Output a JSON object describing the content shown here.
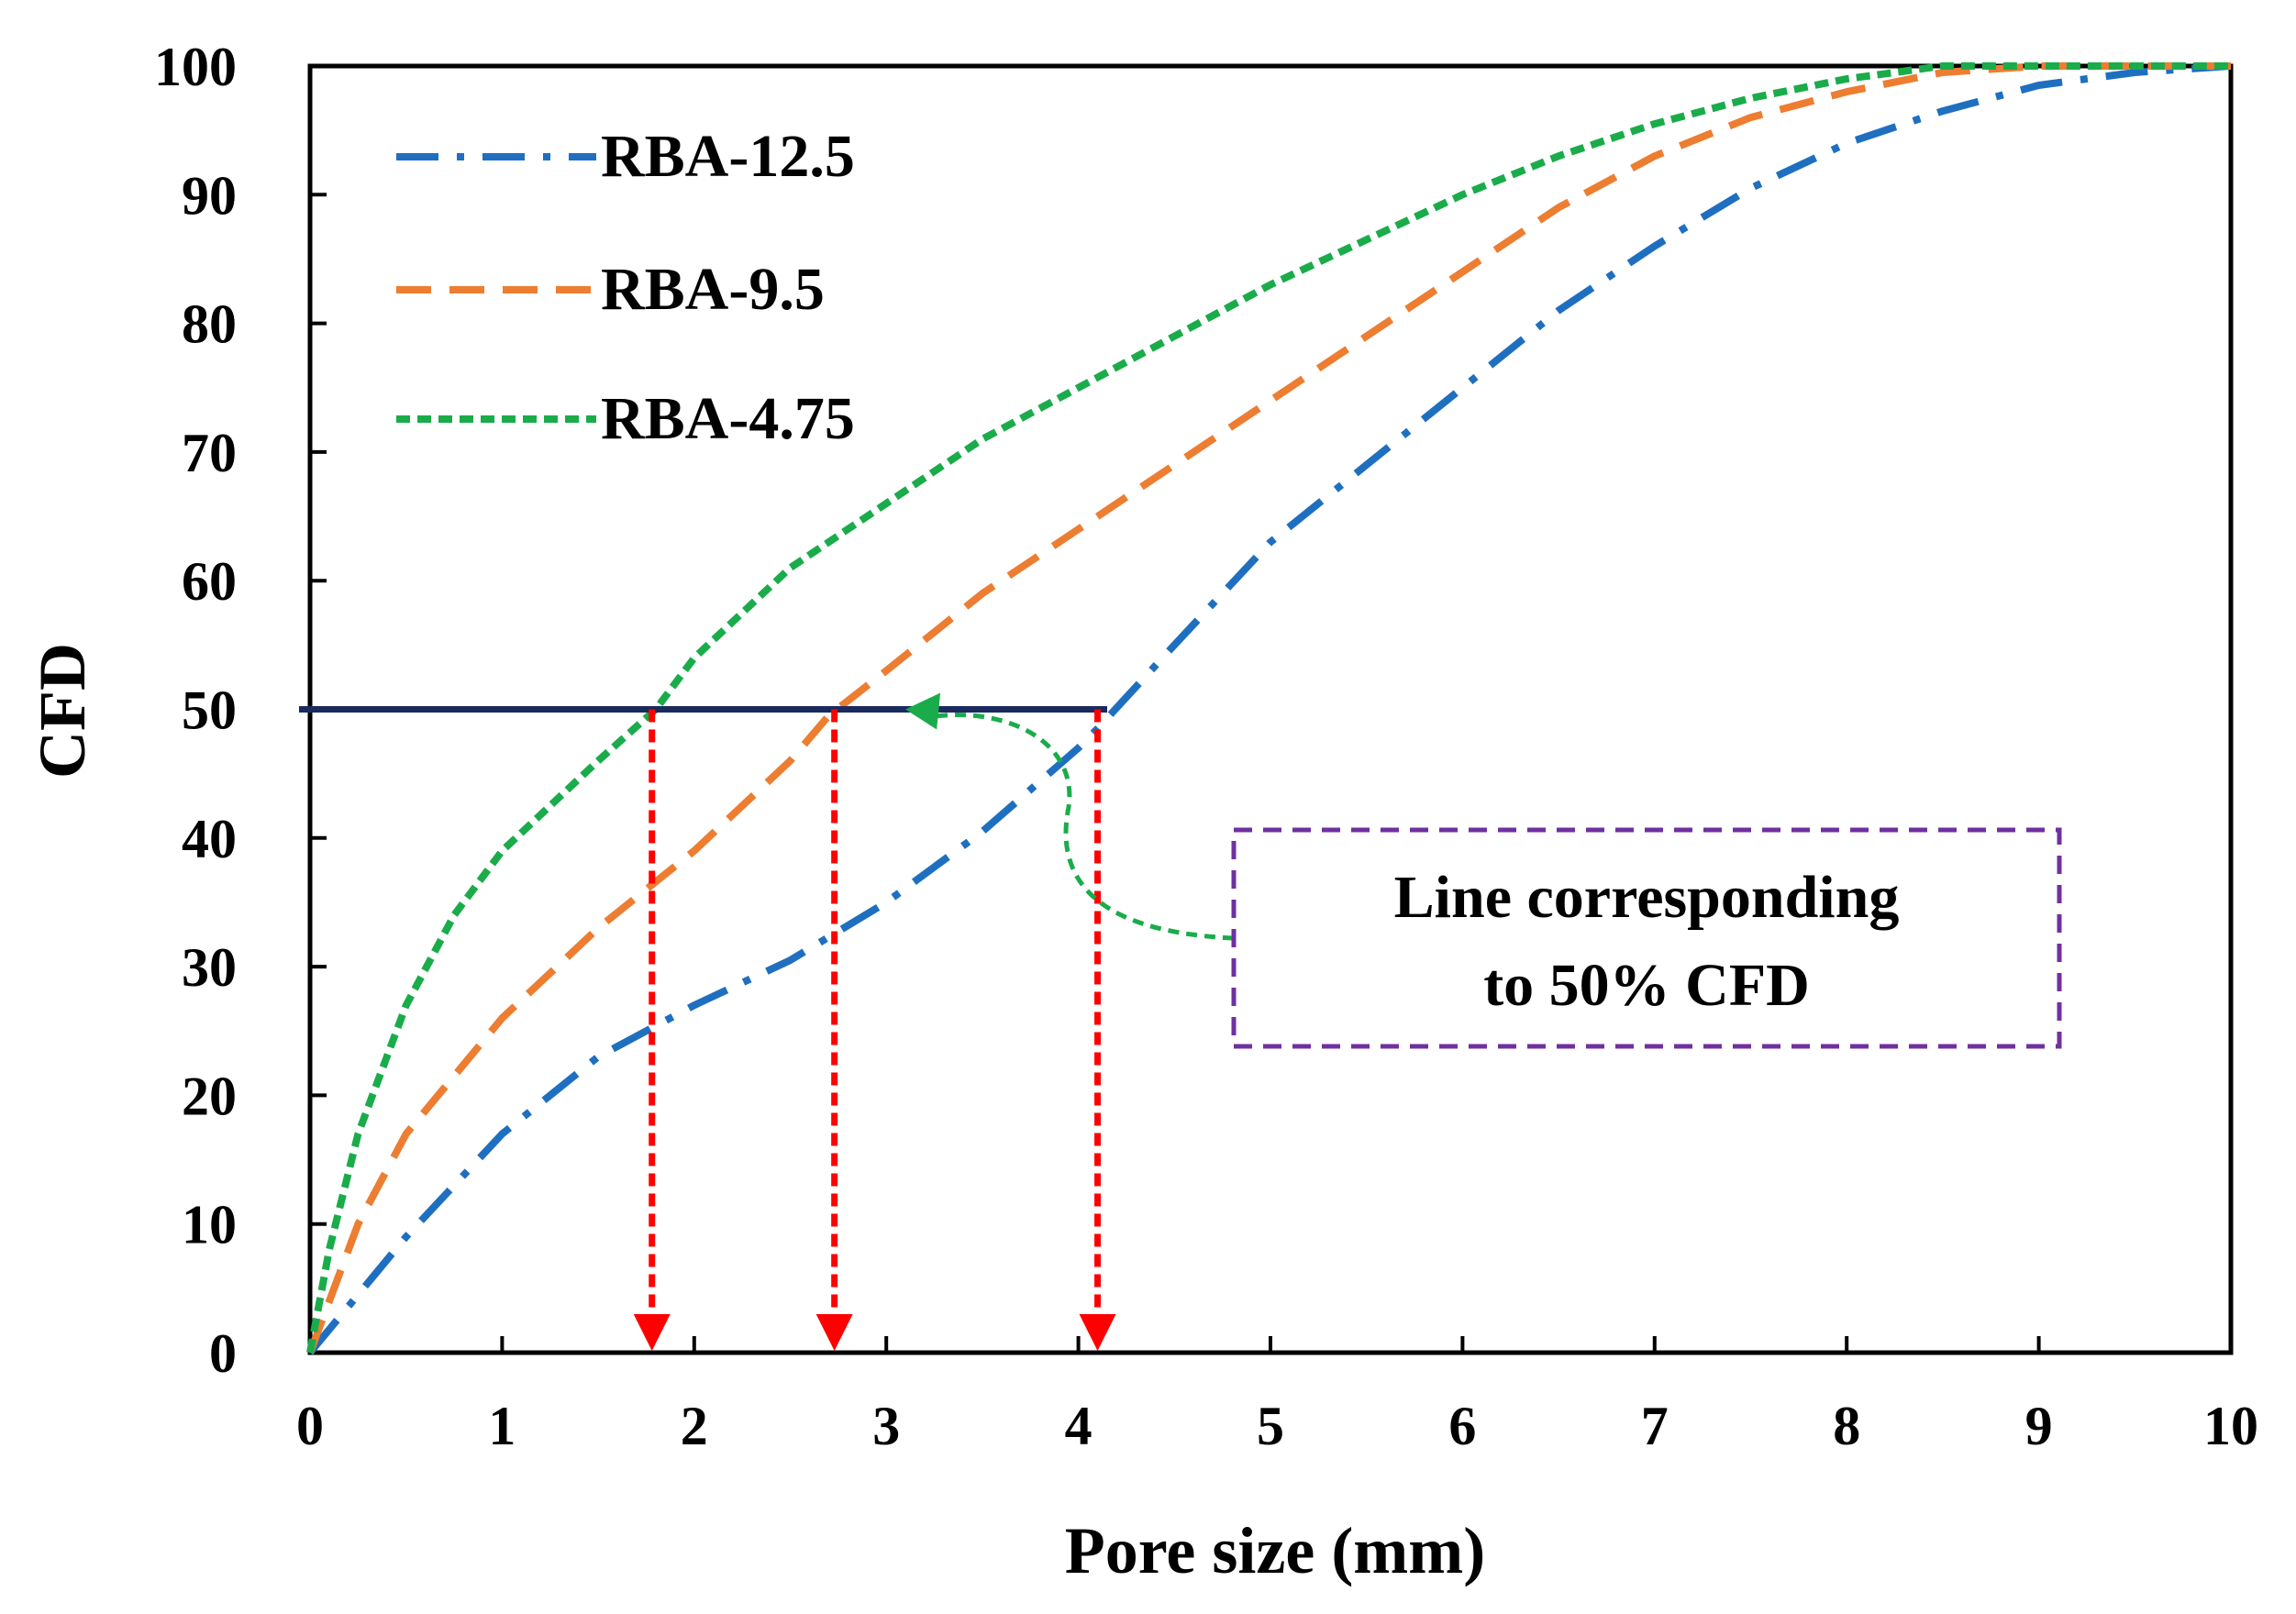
{
  "chart_data": {
    "type": "line",
    "title": "",
    "xlabel": "Pore size (mm)",
    "ylabel": "CFD",
    "xlim": [
      0,
      10
    ],
    "ylim": [
      0,
      100
    ],
    "xticks": [
      "0",
      "1",
      "2",
      "3",
      "4",
      "5",
      "6",
      "7",
      "8",
      "9",
      "10"
    ],
    "yticks": [
      "0",
      "10",
      "20",
      "30",
      "40",
      "50",
      "60",
      "70",
      "80",
      "90",
      "100"
    ],
    "grid": false,
    "legend_position": "top-left",
    "series": [
      {
        "name": "RBA-12.5",
        "color": "#1f6fc0",
        "style": "dashdot",
        "x": [
          0,
          0.5,
          1,
          1.5,
          2,
          2.5,
          3,
          3.5,
          4,
          4.1,
          4.5,
          5,
          5.5,
          6,
          6.5,
          7,
          7.5,
          8,
          8.5,
          9,
          9.5,
          10
        ],
        "y": [
          0,
          9,
          17,
          23,
          27,
          30.5,
          35,
          40.5,
          47,
          48.5,
          55,
          63,
          69,
          75,
          81,
          86,
          90.5,
          94,
          96.5,
          98.5,
          99.5,
          100
        ]
      },
      {
        "name": "RBA-9.5",
        "color": "#ed7d31",
        "style": "dashed",
        "x": [
          0,
          0.25,
          0.5,
          1,
          1.5,
          2,
          2.5,
          2.7,
          3,
          3.5,
          4,
          4.5,
          5,
          5.5,
          6,
          6.5,
          7,
          7.5,
          8,
          8.5,
          9,
          9.5,
          10
        ],
        "y": [
          0,
          10,
          17,
          26,
          33,
          39,
          46,
          49.5,
          53,
          59,
          64,
          69,
          74,
          79,
          84,
          89,
          93,
          96,
          98,
          99.5,
          100,
          100,
          100
        ]
      },
      {
        "name": "RBA-4.75",
        "color": "#1aac4a",
        "style": "dotted",
        "x": [
          0,
          0.1,
          0.25,
          0.5,
          0.75,
          1,
          1.5,
          1.8,
          2,
          2.5,
          3,
          3.5,
          4,
          4.5,
          5,
          5.5,
          6,
          6.5,
          7,
          7.5,
          8,
          8.5,
          9,
          9.5,
          10
        ],
        "y": [
          0,
          8,
          17,
          27,
          34,
          39,
          46,
          50,
          54,
          61,
          66,
          71,
          75,
          79,
          83,
          86.5,
          90,
          93,
          95.5,
          97.5,
          99,
          100,
          100,
          100,
          100
        ]
      }
    ],
    "reference_line": {
      "y": 50,
      "x_start": 0,
      "x_end": 4.15,
      "color": "#1a2a5e"
    },
    "drop_lines": [
      {
        "x": 1.78,
        "color": "#ff0000"
      },
      {
        "x": 2.73,
        "color": "#ff0000"
      },
      {
        "x": 4.1,
        "color": "#ff0000"
      }
    ],
    "annotation": {
      "lines": [
        "Line corresponding",
        "to 50% CFD"
      ],
      "box_color": "#7030a0",
      "arrow_color": "#1aac4a",
      "points_to": {
        "x": 3.1,
        "y": 50
      }
    }
  }
}
